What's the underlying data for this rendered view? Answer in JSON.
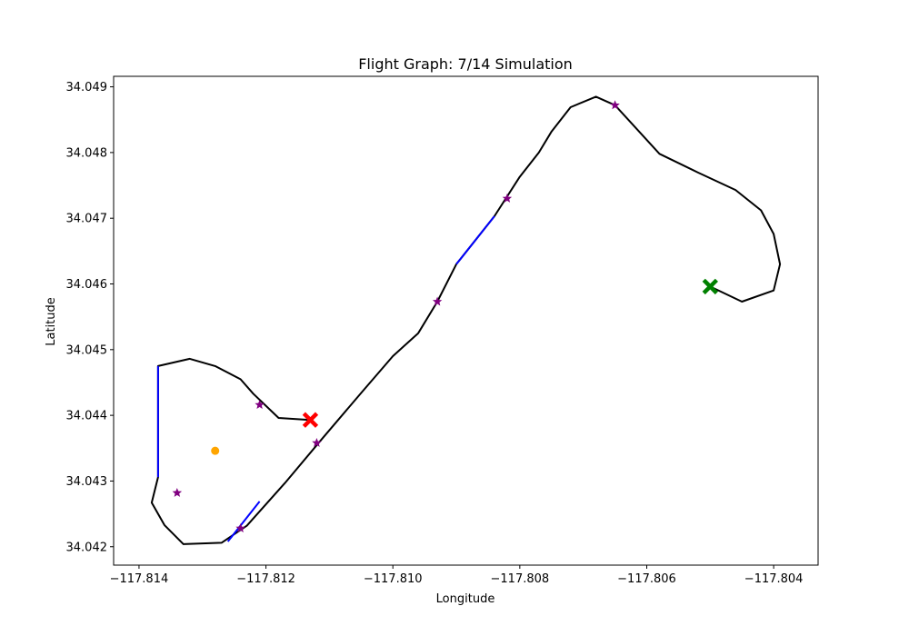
{
  "chart_data": {
    "type": "line",
    "title": "Flight Graph: 7/14 Simulation",
    "xlabel": "Longitude",
    "ylabel": "Latitude",
    "xlim": [
      -117.8144,
      -117.8033
    ],
    "ylim": [
      34.04172,
      34.04916
    ],
    "x_ticks": [
      -117.814,
      -117.812,
      -117.81,
      -117.808,
      -117.806,
      -117.804
    ],
    "x_tick_labels": [
      "−117.814",
      "−117.812",
      "−117.810",
      "−117.808",
      "−117.806",
      "−117.804"
    ],
    "y_ticks": [
      34.042,
      34.043,
      34.044,
      34.045,
      34.046,
      34.047,
      34.048,
      34.049
    ],
    "y_tick_labels": [
      "34.042",
      "34.043",
      "34.044",
      "34.045",
      "34.046",
      "34.047",
      "34.048",
      "34.049"
    ],
    "grid": false,
    "colors": {
      "path": "#000000",
      "highlight": "#0000ff",
      "waypoint": "#800080",
      "start": "#008000",
      "end": "#ff0000",
      "target": "#ffa500"
    },
    "flight_path": {
      "x": [
        -117.805,
        -117.8045,
        -117.804,
        -117.8039,
        -117.804,
        -117.8042,
        -117.8046,
        -117.8052,
        -117.8058,
        -117.8065,
        -117.8068,
        -117.8072,
        -117.8075,
        -117.8077,
        -117.808,
        -117.8084,
        -117.809,
        -117.8093,
        -117.8096,
        -117.81,
        -117.8105,
        -117.8111,
        -117.8117,
        -117.8123,
        -117.8127,
        -117.8133,
        -117.8136,
        -117.8138,
        -117.8137,
        -117.8137,
        -117.8132,
        -117.8128,
        -117.8124,
        -117.8122,
        -117.8118,
        -117.8113
      ],
      "y": [
        34.04596,
        34.04573,
        34.0459,
        34.0463,
        34.04676,
        34.04712,
        34.04743,
        34.0477,
        34.04798,
        34.04872,
        34.04885,
        34.04869,
        34.04832,
        34.048,
        34.04763,
        34.04703,
        34.0463,
        34.04573,
        34.04525,
        34.0449,
        34.04434,
        34.04366,
        34.04297,
        34.04232,
        34.04206,
        34.04204,
        34.04233,
        34.04267,
        34.04306,
        34.04475,
        34.04486,
        34.04475,
        34.04455,
        34.04433,
        34.04396,
        34.04393
      ]
    },
    "highlight_segments": [
      {
        "x": [
          -117.8084,
          -117.809
        ],
        "y": [
          34.04703,
          34.0463
        ]
      },
      {
        "x": [
          -117.8121,
          -117.8126
        ],
        "y": [
          34.04269,
          34.04208
        ]
      },
      {
        "x": [
          -117.8137,
          -117.8137
        ],
        "y": [
          34.04306,
          34.04475
        ]
      }
    ],
    "waypoints": {
      "x": [
        -117.8065,
        -117.8082,
        -117.8093,
        -117.8112,
        -117.8124,
        -117.8121,
        -117.8134
      ],
      "y": [
        34.04872,
        34.0473,
        34.04573,
        34.04358,
        34.04228,
        34.04416,
        34.04282
      ]
    },
    "start_point": {
      "x": -117.805,
      "y": 34.04596
    },
    "end_point": {
      "x": -117.8113,
      "y": 34.04393
    },
    "target_point": {
      "x": -117.8128,
      "y": 34.04346
    }
  }
}
